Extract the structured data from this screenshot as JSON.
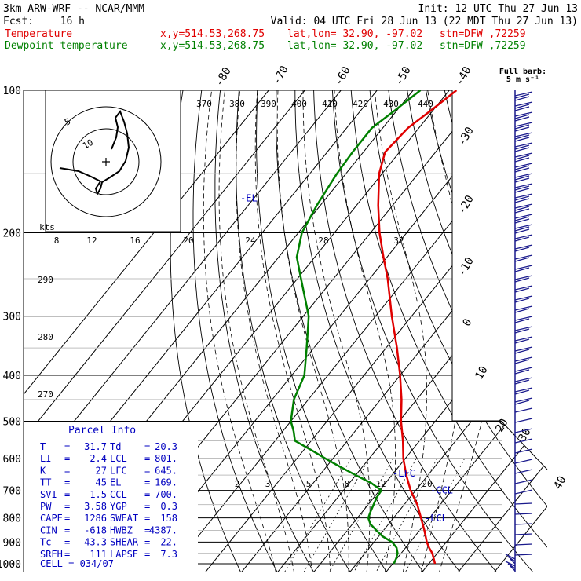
{
  "header": {
    "model": "3km ARW-WRF -- NCAR/MMM",
    "init": "Init: 12 UTC Thu 27 Jun 13",
    "fcst_label": "Fcst:",
    "fcst_value": "16 h",
    "valid": "Valid: 04 UTC Fri 28 Jun 13 (22 MDT Thu 27 Jun 13)",
    "temp_label": "Temperature",
    "temp_xy": "x,y=514.53,268.75",
    "temp_latlon": "lat,lon= 32.90, -97.02",
    "temp_stn": "stn=DFW ,72259",
    "dew_label": "Dewpoint temperature",
    "dew_xy": "x,y=514.53,268.75",
    "dew_latlon": "lat,lon= 32.90, -97.02",
    "dew_stn": "stn=DFW ,72259",
    "barb_title": "Full barb:",
    "barb_units": "5 m s⁻¹"
  },
  "chart_data": {
    "type": "line",
    "pressure_levels": [
      "100",
      "200",
      "300",
      "400",
      "500",
      "600",
      "700",
      "800",
      "900",
      "1000"
    ],
    "theta_labels": [
      "370",
      "380",
      "390",
      "400",
      "410",
      "420",
      "430",
      "440"
    ],
    "mixing_ratio_labels": [
      "2",
      "3",
      "5",
      "8",
      "12",
      "20"
    ],
    "isotherm_labels": [
      "-80",
      "-70",
      "-60",
      "-50",
      "-40",
      "-30",
      "-20",
      "-10",
      "0",
      "10",
      "20",
      "30",
      "40"
    ],
    "dry_adiabat_labels": [
      "290",
      "280",
      "270"
    ],
    "hodograph_labels": [
      "kts",
      "8",
      "12",
      "16",
      "20",
      "24",
      "28",
      "32"
    ],
    "hodograph_rings": [
      "5",
      "10"
    ],
    "level_markers": [
      "-EL",
      "-LFC",
      "-CCL",
      "-LCL"
    ],
    "series": [
      {
        "name": "Temperature",
        "color": "#e00000",
        "pressure": [
          1000,
          975,
          950,
          925,
          900,
          850,
          800,
          750,
          700,
          650,
          600,
          550,
          500,
          450,
          400,
          350,
          300,
          250,
          225,
          200,
          175,
          150,
          135,
          120,
          110,
          100
        ],
        "temperature_c": [
          31.7,
          30.2,
          28.6,
          26.5,
          24.6,
          21.3,
          17.6,
          13.6,
          8.6,
          4.0,
          -0.5,
          -4.6,
          -9.5,
          -14.2,
          -20.0,
          -27.0,
          -35.5,
          -45.0,
          -51.0,
          -57.5,
          -64.0,
          -70.8,
          -74.0,
          -73.0,
          -70.5,
          -68.0
        ]
      },
      {
        "name": "Dewpoint temperature",
        "color": "#008000",
        "pressure": [
          1000,
          975,
          950,
          925,
          900,
          875,
          850,
          825,
          800,
          775,
          750,
          725,
          700,
          675,
          650,
          625,
          600,
          575,
          550,
          525,
          500,
          450,
          400,
          350,
          300,
          250,
          225,
          200,
          175,
          150,
          135,
          120,
          110,
          100
        ],
        "temperature_c": [
          20.3,
          19.8,
          19.0,
          17.5,
          15.0,
          11.0,
          8.0,
          5.0,
          3.0,
          2.2,
          1.5,
          0.8,
          0.5,
          -4.0,
          -10.0,
          -16.0,
          -22.0,
          -28.0,
          -34.5,
          -37.0,
          -40.0,
          -44.0,
          -46.5,
          -52.0,
          -58.5,
          -69.0,
          -75.0,
          -79.0,
          -81.0,
          -82.5,
          -83.0,
          -83.0,
          -80.5,
          -78.0
        ]
      }
    ],
    "parcel_info": {
      "title": "Parcel Info",
      "rows": [
        [
          "T",
          "=",
          "31.7",
          "Td",
          "=",
          "20.3"
        ],
        [
          "LI",
          "=",
          "-2.4",
          "LCL",
          "=",
          "801."
        ],
        [
          "K",
          "=",
          "27",
          "LFC",
          "=",
          "645."
        ],
        [
          "TT",
          "=",
          "45",
          "EL",
          "=",
          "169."
        ],
        [
          "SVI",
          "=",
          "1.5",
          "CCL",
          "=",
          "700."
        ],
        [
          "PW",
          "=",
          "3.58",
          "YGP",
          "=",
          "0.3"
        ],
        [
          "CAPE",
          "=",
          "1286",
          "SWEAT",
          "=",
          "158"
        ],
        [
          "CIN",
          "=",
          "-618",
          "HWBZ",
          "=",
          "4387."
        ],
        [
          "Tc",
          "=",
          "43.3",
          "SHEAR",
          "=",
          "22."
        ],
        [
          "SREH",
          "=",
          "111",
          "LAPSE",
          "=",
          "7.3"
        ]
      ],
      "cell": "CELL = 034/07"
    }
  },
  "colors": {
    "temperature": "#e00000",
    "dewpoint": "#008000",
    "parcel_info": "#0000c0",
    "wind_barbs": "#1a1a8c"
  }
}
